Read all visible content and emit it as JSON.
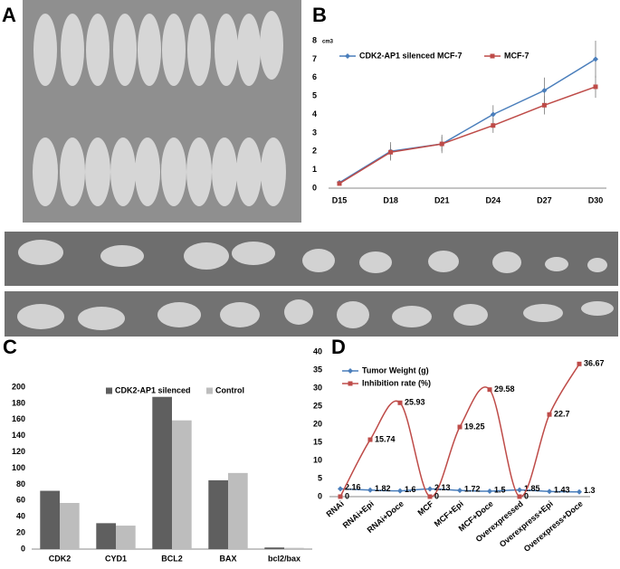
{
  "photo_panel_label": "A",
  "chart_data": [
    {
      "type": "line",
      "panel_label": "B",
      "y_unit": "cm3",
      "categories": [
        "D15",
        "D18",
        "D21",
        "D24",
        "D27",
        "D30"
      ],
      "series": [
        {
          "name": "CDK2-AP1 silenced MCF-7",
          "color": "#4a7ebb",
          "marker": "diamond",
          "values": [
            0.3,
            2.0,
            2.4,
            4.0,
            5.3,
            7.0
          ],
          "errors": [
            0.1,
            0.5,
            0.4,
            0.5,
            0.7,
            1.0
          ]
        },
        {
          "name": "MCF-7",
          "color": "#be4b48",
          "marker": "square",
          "values": [
            0.25,
            1.95,
            2.4,
            3.4,
            4.5,
            5.5
          ],
          "errors": [
            0.1,
            0.4,
            0.5,
            0.4,
            0.5,
            0.6
          ]
        }
      ],
      "ylim": [
        0,
        8
      ],
      "yticks": [
        0,
        1,
        2,
        3,
        4,
        5,
        6,
        7,
        8
      ]
    },
    {
      "type": "bar",
      "panel_label": "C",
      "categories": [
        "CDK2",
        "CYD1",
        "BCL2",
        "BAX",
        "bcl2/bax"
      ],
      "series": [
        {
          "name": "CDK2-AP1 silenced",
          "color": "#5f5f5f",
          "values": [
            72,
            32,
            188,
            85,
            2
          ]
        },
        {
          "name": "Control",
          "color": "#bdbdbd",
          "values": [
            57,
            29,
            159,
            94,
            1.5
          ]
        }
      ],
      "ylim": [
        0,
        200
      ],
      "yticks": [
        0,
        20,
        40,
        60,
        80,
        100,
        120,
        140,
        160,
        180,
        200
      ]
    },
    {
      "type": "line",
      "panel_label": "D",
      "smooth": true,
      "data_labels": true,
      "categories": [
        "RNAi",
        "RNAi+Epi",
        "RNAi+Doce",
        "MCF",
        "MCF+Epi",
        "MCF+Doce",
        "Overexpressed",
        "Overexpress+Epi",
        "Overexpress+Doce"
      ],
      "series": [
        {
          "name": "Tumor Weight (g)",
          "color": "#4a7ebb",
          "marker": "diamond",
          "values": [
            2.16,
            1.82,
            1.6,
            2.13,
            1.72,
            1.5,
            1.85,
            1.43,
            1.3
          ]
        },
        {
          "name": "Inhibition rate (%)",
          "color": "#be4b48",
          "marker": "square",
          "values": [
            0,
            15.74,
            25.93,
            0,
            19.25,
            29.58,
            0,
            22.7,
            36.67
          ]
        }
      ],
      "ylim": [
        0,
        40
      ],
      "yticks": [
        0,
        5,
        10,
        15,
        20,
        25,
        30,
        35,
        40
      ]
    }
  ]
}
